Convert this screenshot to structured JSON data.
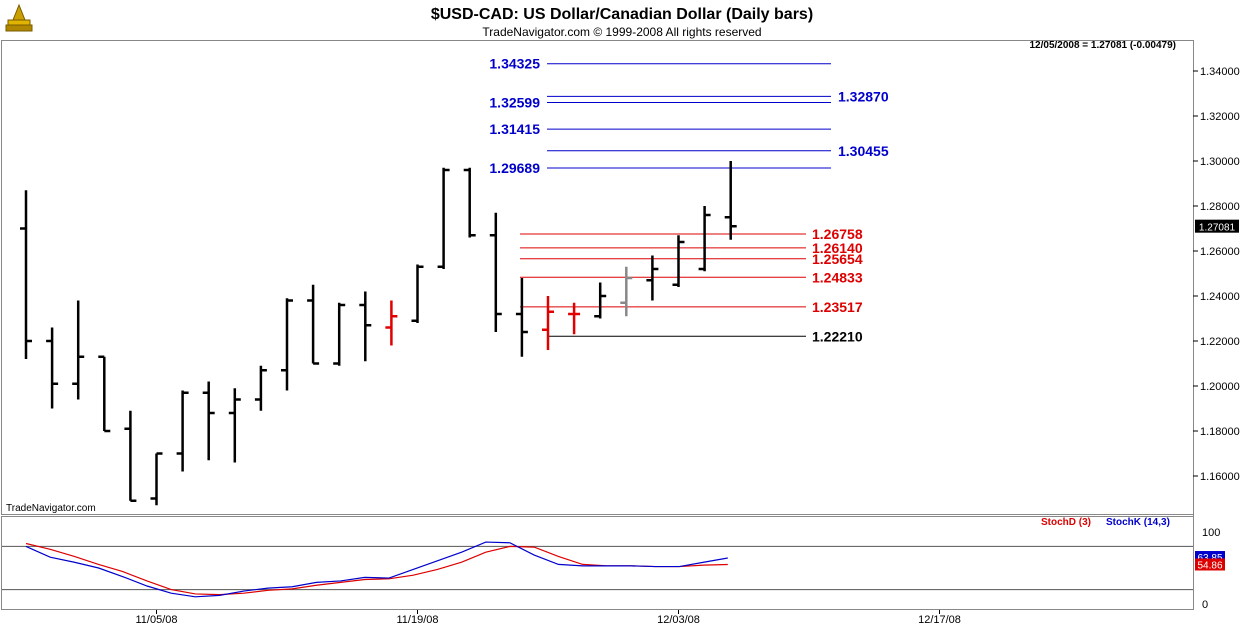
{
  "header": {
    "title": "$USD-CAD:  US Dollar/Canadian Dollar  (Daily bars)",
    "subtitle": "TradeNavigator.com © 1999-2008 All rights reserved",
    "last_quote": "12/05/2008 = 1.27081 (-0.00479)",
    "watermark": "TradeNavigator.com"
  },
  "colors": {
    "bar": "#000000",
    "red_bar": "#e00000",
    "gray_bar": "#888888",
    "blue_level": "#0000cc",
    "red_level": "#dd0000",
    "black_level": "#000000",
    "stochD": "#dd0000",
    "stochK": "#0000cc",
    "price_box": "#000000"
  },
  "chart_data": {
    "type": "ohlc",
    "price_axis": {
      "ylim": [
        1.144,
        1.35
      ],
      "ticks": [
        "1.34000",
        "1.32000",
        "1.30000",
        "1.28000",
        "1.26000",
        "1.24000",
        "1.22000",
        "1.20000",
        "1.18000",
        "1.16000"
      ],
      "tick_values": [
        1.34,
        1.32,
        1.3,
        1.28,
        1.26,
        1.24,
        1.22,
        1.2,
        1.18,
        1.16
      ],
      "current": "1.27081",
      "current_value": 1.27081
    },
    "x_axis": {
      "labels": [
        "11/05/08",
        "11/19/08",
        "12/03/08",
        "12/17/08"
      ],
      "label_index": [
        5,
        15,
        25,
        35
      ]
    },
    "bars": [
      {
        "o": 1.27,
        "h": 1.287,
        "l": 1.212,
        "c": 1.22
      },
      {
        "o": 1.22,
        "h": 1.226,
        "l": 1.19,
        "c": 1.201
      },
      {
        "o": 1.201,
        "h": 1.238,
        "l": 1.194,
        "c": 1.213
      },
      {
        "o": 1.213,
        "h": 1.213,
        "l": 1.18,
        "c": 1.18
      },
      {
        "o": 1.181,
        "h": 1.189,
        "l": 1.149,
        "c": 1.149
      },
      {
        "o": 1.15,
        "h": 1.17,
        "l": 1.147,
        "c": 1.17
      },
      {
        "o": 1.17,
        "h": 1.198,
        "l": 1.162,
        "c": 1.197
      },
      {
        "o": 1.197,
        "h": 1.202,
        "l": 1.167,
        "c": 1.188
      },
      {
        "o": 1.188,
        "h": 1.199,
        "l": 1.166,
        "c": 1.194
      },
      {
        "o": 1.194,
        "h": 1.209,
        "l": 1.189,
        "c": 1.207
      },
      {
        "o": 1.207,
        "h": 1.239,
        "l": 1.198,
        "c": 1.238
      },
      {
        "o": 1.238,
        "h": 1.245,
        "l": 1.21,
        "c": 1.21
      },
      {
        "o": 1.21,
        "h": 1.237,
        "l": 1.209,
        "c": 1.236
      },
      {
        "o": 1.236,
        "h": 1.242,
        "l": 1.211,
        "c": 1.227
      },
      {
        "o": 1.226,
        "h": 1.238,
        "l": 1.218,
        "c": 1.231,
        "color": "red"
      },
      {
        "o": 1.229,
        "h": 1.254,
        "l": 1.228,
        "c": 1.253
      },
      {
        "o": 1.253,
        "h": 1.297,
        "l": 1.252,
        "c": 1.296
      },
      {
        "o": 1.296,
        "h": 1.297,
        "l": 1.266,
        "c": 1.267
      },
      {
        "o": 1.267,
        "h": 1.277,
        "l": 1.224,
        "c": 1.232
      },
      {
        "o": 1.232,
        "h": 1.248,
        "l": 1.213,
        "c": 1.224
      },
      {
        "o": 1.225,
        "h": 1.24,
        "l": 1.216,
        "c": 1.233,
        "color": "red"
      },
      {
        "o": 1.232,
        "h": 1.237,
        "l": 1.223,
        "c": 1.232,
        "color": "red"
      },
      {
        "o": 1.231,
        "h": 1.246,
        "l": 1.23,
        "c": 1.24
      },
      {
        "o": 1.237,
        "h": 1.253,
        "l": 1.231,
        "c": 1.248,
        "color": "gray"
      },
      {
        "o": 1.247,
        "h": 1.258,
        "l": 1.238,
        "c": 1.252
      },
      {
        "o": 1.245,
        "h": 1.267,
        "l": 1.244,
        "c": 1.264
      },
      {
        "o": 1.252,
        "h": 1.28,
        "l": 1.251,
        "c": 1.276
      },
      {
        "o": 1.275,
        "h": 1.3,
        "l": 1.265,
        "c": 1.271
      }
    ],
    "levels": [
      {
        "label": "1.34325",
        "value": 1.34325,
        "color": "blue",
        "side": "left"
      },
      {
        "label": "1.32870",
        "value": 1.3287,
        "color": "blue",
        "side": "right"
      },
      {
        "label": "1.32599",
        "value": 1.32599,
        "color": "blue",
        "side": "left"
      },
      {
        "label": "1.31415",
        "value": 1.31415,
        "color": "blue",
        "side": "left"
      },
      {
        "label": "1.30455",
        "value": 1.30455,
        "color": "blue",
        "side": "right"
      },
      {
        "label": "1.29689",
        "value": 1.29689,
        "color": "blue",
        "side": "left"
      },
      {
        "label": "1.26758",
        "value": 1.26758,
        "color": "red",
        "side": "right"
      },
      {
        "label": "1.26140",
        "value": 1.2614,
        "color": "red",
        "side": "right"
      },
      {
        "label": "1.25654",
        "value": 1.25654,
        "color": "red",
        "side": "right"
      },
      {
        "label": "1.24833",
        "value": 1.24833,
        "color": "red",
        "side": "right"
      },
      {
        "label": "1.23517",
        "value": 1.23517,
        "color": "red",
        "side": "right"
      },
      {
        "label": "1.22210",
        "value": 1.2221,
        "color": "black",
        "side": "right"
      }
    ],
    "stochastic": {
      "legend_d": "StochD (3)",
      "legend_k": "StochK (14,3)",
      "ylim": [
        -5,
        105
      ],
      "ticks": [
        "100",
        "0"
      ],
      "tick_values": [
        100,
        0
      ],
      "bands": [
        80,
        20
      ],
      "d_value_label": "54.86",
      "k_value_label": "63.85",
      "d_value": 54.86,
      "k_value": 63.85,
      "stochK": [
        80,
        65,
        58,
        50,
        38,
        25,
        15,
        10,
        12,
        18,
        22,
        24,
        30,
        32,
        37,
        36,
        48,
        60,
        72,
        86,
        85,
        68,
        55,
        53,
        53,
        53,
        52,
        52,
        58,
        63.85
      ],
      "stochD": [
        84,
        76,
        66,
        55,
        45,
        32,
        20,
        14,
        13,
        15,
        19,
        21,
        26,
        30,
        34,
        35,
        40,
        48,
        58,
        72,
        80,
        79,
        66,
        55,
        53,
        53,
        52,
        52,
        54,
        54.86
      ]
    }
  }
}
